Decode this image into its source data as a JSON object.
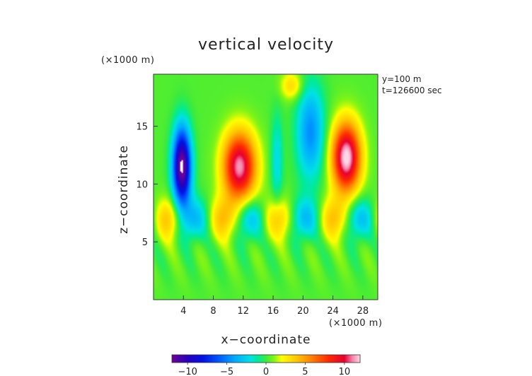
{
  "chart_data": {
    "type": "heatmap",
    "title": "vertical velocity",
    "xlabel": "x−coordinate",
    "ylabel": "z−coordinate",
    "x_unit": "(×1000 m)",
    "y_unit": "(×1000 m)",
    "info_lines": [
      "y=100 m",
      "t=126600 sec"
    ],
    "xlim": [
      0,
      30
    ],
    "ylim": [
      0,
      19.5
    ],
    "x_ticks": [
      4,
      8,
      12,
      16,
      20,
      24,
      28
    ],
    "y_ticks": [
      5,
      10,
      15
    ],
    "x_tick_labels": [
      "4",
      "8",
      "12",
      "16",
      "20",
      "24",
      "28"
    ],
    "y_tick_labels": [
      "5",
      "10",
      "15"
    ],
    "colorbar": {
      "range": [
        -12,
        12
      ],
      "ticks": [
        -10,
        -5,
        0,
        5,
        10
      ],
      "tick_labels": [
        "−10",
        "−5",
        "0",
        "5",
        "10"
      ]
    },
    "features": [
      {
        "kind": "downdraft",
        "x": 3.8,
        "z": 11.5,
        "value": -13,
        "sx": 1.2,
        "sz": 3.3
      },
      {
        "kind": "updraft",
        "x": 11.5,
        "z": 11.5,
        "value": 11,
        "sx": 2.2,
        "sz": 3.0
      },
      {
        "kind": "updraft",
        "x": 25.8,
        "z": 12.3,
        "value": 12,
        "sx": 1.9,
        "sz": 3.0
      },
      {
        "kind": "downdraft",
        "x": 21.0,
        "z": 14.5,
        "value": -5,
        "sx": 1.8,
        "sz": 4.0
      }
    ]
  }
}
